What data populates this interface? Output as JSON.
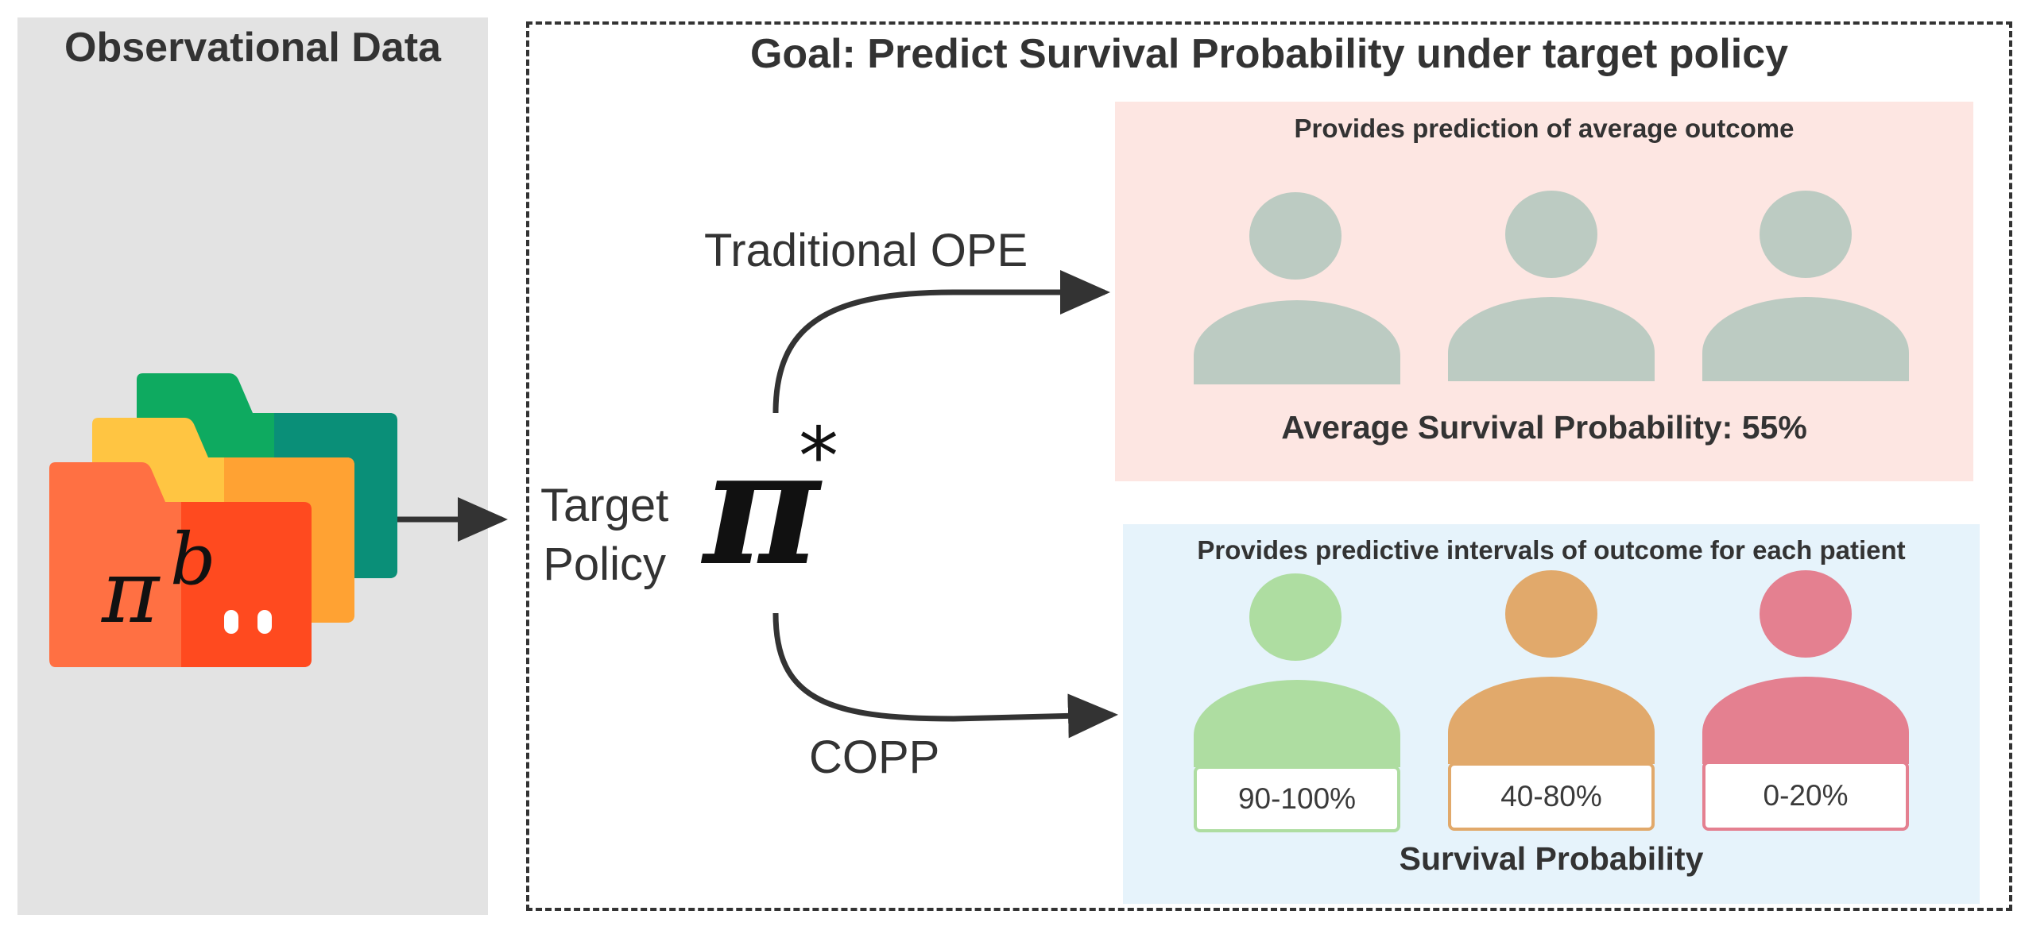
{
  "observational": {
    "title": "Observational Data",
    "policy_symbol": "π",
    "policy_superscript": "b"
  },
  "goal": {
    "title": "Goal: Predict Survival Probability under target policy"
  },
  "target_policy": {
    "label_line1": "Target",
    "label_line2": "Policy",
    "symbol": "π",
    "superscript": "*"
  },
  "methods": {
    "traditional": "Traditional OPE",
    "copp": "COPP"
  },
  "ope_box": {
    "caption": "Provides prediction of average outcome",
    "average": "Average Survival Probability: 55%",
    "person_color": "#bccbc2",
    "background": "#fde6e2"
  },
  "copp_box": {
    "caption": "Provides predictive intervals of outcome for each patient",
    "footer": "Survival Probability",
    "background": "#e6f3fb",
    "patients": [
      {
        "interval": "90-100%",
        "color": "#aedda1",
        "border": "#aedda1"
      },
      {
        "interval": "40-80%",
        "color": "#e1a96b",
        "border": "#e1a96b"
      },
      {
        "interval": "0-20%",
        "color": "#e48090",
        "border": "#e48090"
      }
    ]
  },
  "colors": {
    "panel": "#e3e3e3",
    "folder_front": "#ff7043",
    "folder_front_right": "#ff4a1f",
    "folder_middle": "#ffc542",
    "folder_middle_right": "#ffa233",
    "folder_back": "#0eaa60",
    "folder_back_right": "#0a8f78",
    "arrow": "#333333"
  }
}
